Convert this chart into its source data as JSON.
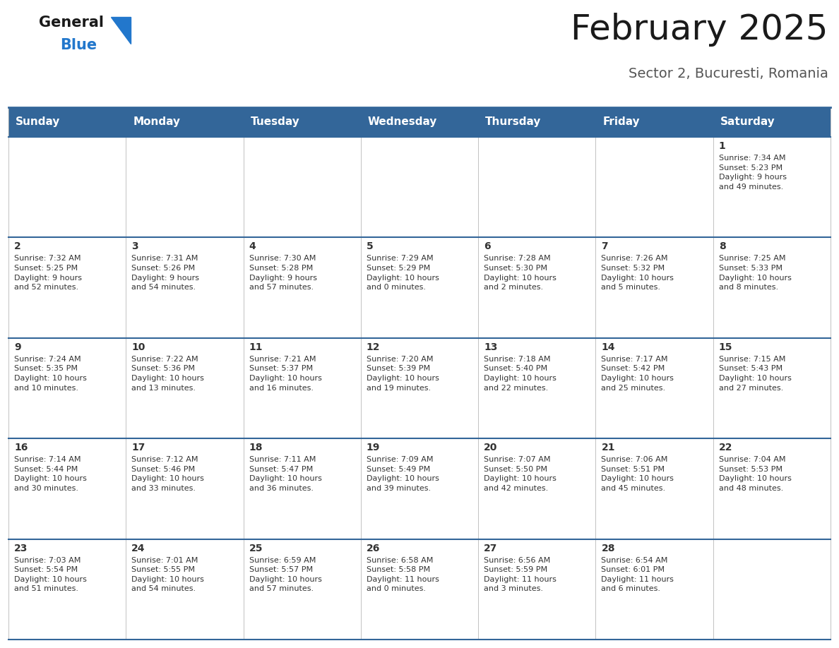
{
  "title": "February 2025",
  "subtitle": "Sector 2, Bucuresti, Romania",
  "header_bg_color": "#336699",
  "header_text_color": "#ffffff",
  "cell_bg": "#ffffff",
  "cell_bg_alt": "#f0f0f0",
  "day_text_color": "#333333",
  "info_text_color": "#333333",
  "border_color": "#336699",
  "grid_color": "#aaaaaa",
  "days_of_week": [
    "Sunday",
    "Monday",
    "Tuesday",
    "Wednesday",
    "Thursday",
    "Friday",
    "Saturday"
  ],
  "calendar": [
    [
      {
        "day": "",
        "info": ""
      },
      {
        "day": "",
        "info": ""
      },
      {
        "day": "",
        "info": ""
      },
      {
        "day": "",
        "info": ""
      },
      {
        "day": "",
        "info": ""
      },
      {
        "day": "",
        "info": ""
      },
      {
        "day": "1",
        "info": "Sunrise: 7:34 AM\nSunset: 5:23 PM\nDaylight: 9 hours\nand 49 minutes."
      }
    ],
    [
      {
        "day": "2",
        "info": "Sunrise: 7:32 AM\nSunset: 5:25 PM\nDaylight: 9 hours\nand 52 minutes."
      },
      {
        "day": "3",
        "info": "Sunrise: 7:31 AM\nSunset: 5:26 PM\nDaylight: 9 hours\nand 54 minutes."
      },
      {
        "day": "4",
        "info": "Sunrise: 7:30 AM\nSunset: 5:28 PM\nDaylight: 9 hours\nand 57 minutes."
      },
      {
        "day": "5",
        "info": "Sunrise: 7:29 AM\nSunset: 5:29 PM\nDaylight: 10 hours\nand 0 minutes."
      },
      {
        "day": "6",
        "info": "Sunrise: 7:28 AM\nSunset: 5:30 PM\nDaylight: 10 hours\nand 2 minutes."
      },
      {
        "day": "7",
        "info": "Sunrise: 7:26 AM\nSunset: 5:32 PM\nDaylight: 10 hours\nand 5 minutes."
      },
      {
        "day": "8",
        "info": "Sunrise: 7:25 AM\nSunset: 5:33 PM\nDaylight: 10 hours\nand 8 minutes."
      }
    ],
    [
      {
        "day": "9",
        "info": "Sunrise: 7:24 AM\nSunset: 5:35 PM\nDaylight: 10 hours\nand 10 minutes."
      },
      {
        "day": "10",
        "info": "Sunrise: 7:22 AM\nSunset: 5:36 PM\nDaylight: 10 hours\nand 13 minutes."
      },
      {
        "day": "11",
        "info": "Sunrise: 7:21 AM\nSunset: 5:37 PM\nDaylight: 10 hours\nand 16 minutes."
      },
      {
        "day": "12",
        "info": "Sunrise: 7:20 AM\nSunset: 5:39 PM\nDaylight: 10 hours\nand 19 minutes."
      },
      {
        "day": "13",
        "info": "Sunrise: 7:18 AM\nSunset: 5:40 PM\nDaylight: 10 hours\nand 22 minutes."
      },
      {
        "day": "14",
        "info": "Sunrise: 7:17 AM\nSunset: 5:42 PM\nDaylight: 10 hours\nand 25 minutes."
      },
      {
        "day": "15",
        "info": "Sunrise: 7:15 AM\nSunset: 5:43 PM\nDaylight: 10 hours\nand 27 minutes."
      }
    ],
    [
      {
        "day": "16",
        "info": "Sunrise: 7:14 AM\nSunset: 5:44 PM\nDaylight: 10 hours\nand 30 minutes."
      },
      {
        "day": "17",
        "info": "Sunrise: 7:12 AM\nSunset: 5:46 PM\nDaylight: 10 hours\nand 33 minutes."
      },
      {
        "day": "18",
        "info": "Sunrise: 7:11 AM\nSunset: 5:47 PM\nDaylight: 10 hours\nand 36 minutes."
      },
      {
        "day": "19",
        "info": "Sunrise: 7:09 AM\nSunset: 5:49 PM\nDaylight: 10 hours\nand 39 minutes."
      },
      {
        "day": "20",
        "info": "Sunrise: 7:07 AM\nSunset: 5:50 PM\nDaylight: 10 hours\nand 42 minutes."
      },
      {
        "day": "21",
        "info": "Sunrise: 7:06 AM\nSunset: 5:51 PM\nDaylight: 10 hours\nand 45 minutes."
      },
      {
        "day": "22",
        "info": "Sunrise: 7:04 AM\nSunset: 5:53 PM\nDaylight: 10 hours\nand 48 minutes."
      }
    ],
    [
      {
        "day": "23",
        "info": "Sunrise: 7:03 AM\nSunset: 5:54 PM\nDaylight: 10 hours\nand 51 minutes."
      },
      {
        "day": "24",
        "info": "Sunrise: 7:01 AM\nSunset: 5:55 PM\nDaylight: 10 hours\nand 54 minutes."
      },
      {
        "day": "25",
        "info": "Sunrise: 6:59 AM\nSunset: 5:57 PM\nDaylight: 10 hours\nand 57 minutes."
      },
      {
        "day": "26",
        "info": "Sunrise: 6:58 AM\nSunset: 5:58 PM\nDaylight: 11 hours\nand 0 minutes."
      },
      {
        "day": "27",
        "info": "Sunrise: 6:56 AM\nSunset: 5:59 PM\nDaylight: 11 hours\nand 3 minutes."
      },
      {
        "day": "28",
        "info": "Sunrise: 6:54 AM\nSunset: 6:01 PM\nDaylight: 11 hours\nand 6 minutes."
      },
      {
        "day": "",
        "info": ""
      }
    ]
  ],
  "logo_color_general": "#1a1a1a",
  "logo_color_blue": "#2277cc",
  "logo_triangle_color": "#2277cc",
  "title_fontsize": 36,
  "subtitle_fontsize": 14,
  "header_fontsize": 11,
  "day_num_fontsize": 10,
  "info_fontsize": 8
}
